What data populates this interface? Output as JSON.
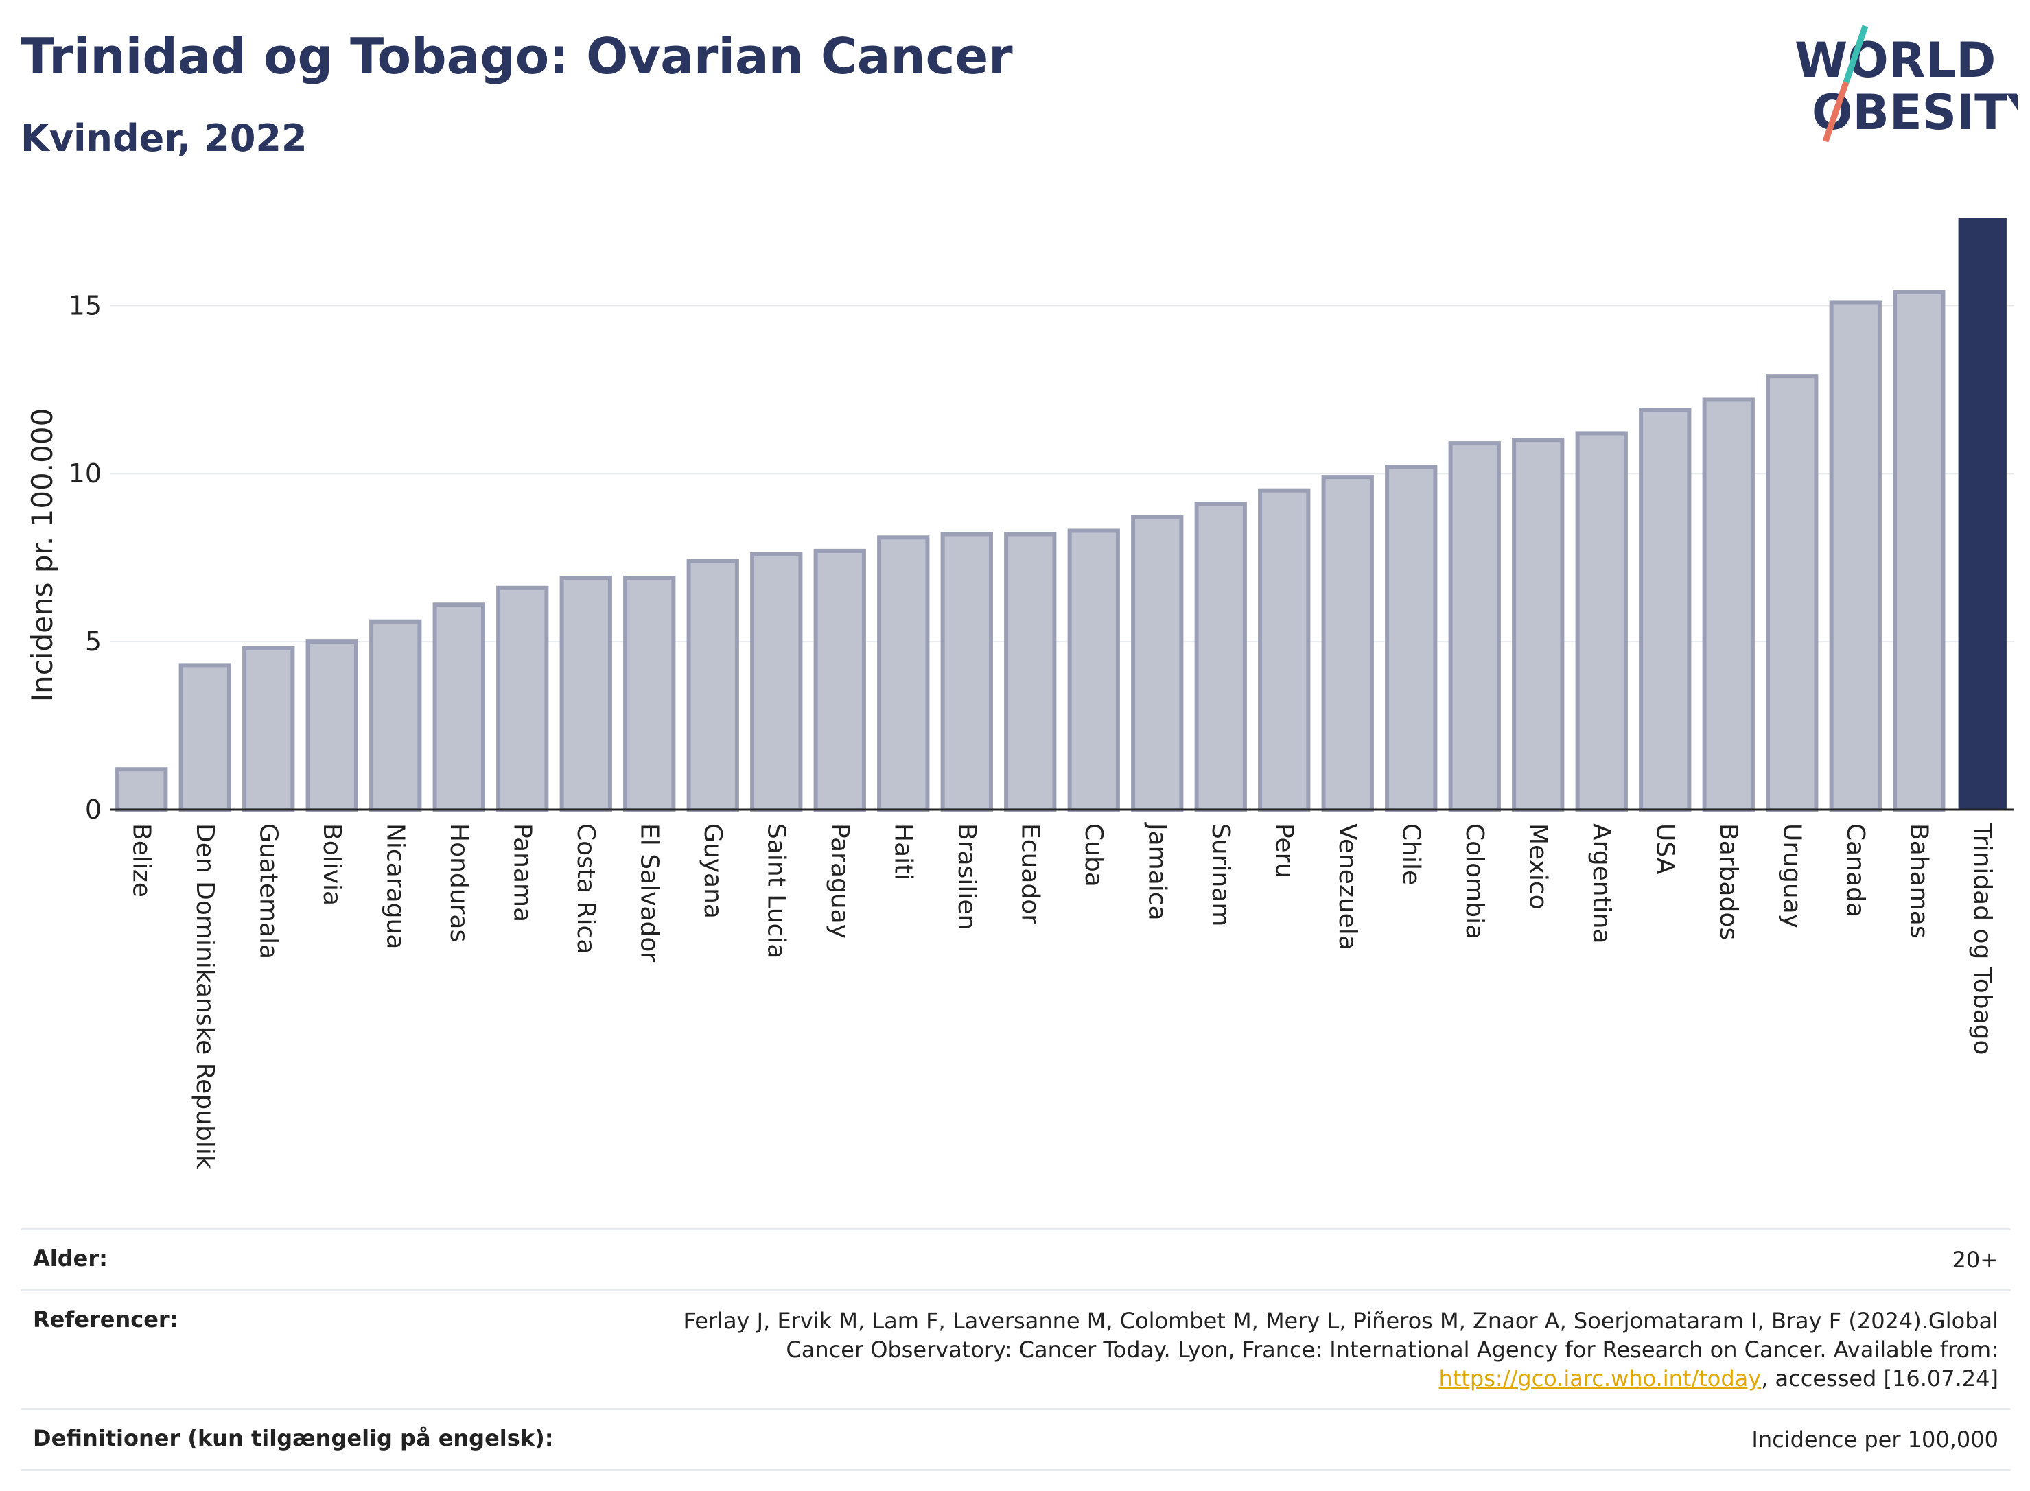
{
  "header": {
    "title": "Trinidad og Tobago: Ovarian Cancer",
    "subtitle": "Kvinder, 2022",
    "logo_line1": "WORLD",
    "logo_line2": "OBESITY"
  },
  "colors": {
    "bar": "#bfc3d0",
    "bar_stroke": "#9a9fb6",
    "highlight": "#2a3560",
    "grid": "#e6e9ee",
    "logo_teal": "#3bbfb3",
    "logo_coral": "#e8735f",
    "link": "#e0a800"
  },
  "chart_data": {
    "type": "bar",
    "ylabel": "Incidens pr. 100.000",
    "ylim": [
      0,
      17.6
    ],
    "yticks": [
      0,
      5,
      10,
      15
    ],
    "grid": true,
    "highlight": "Trinidad og Tobago",
    "categories": [
      "Belize",
      "Den Dominikanske Republik",
      "Guatemala",
      "Bolivia",
      "Nicaragua",
      "Honduras",
      "Panama",
      "Costa Rica",
      "El Salvador",
      "Guyana",
      "Saint Lucia",
      "Paraguay",
      "Haiti",
      "Brasilien",
      "Ecuador",
      "Cuba",
      "Jamaica",
      "Surinam",
      "Peru",
      "Venezuela",
      "Chile",
      "Colombia",
      "Mexico",
      "Argentina",
      "USA",
      "Barbados",
      "Uruguay",
      "Canada",
      "Bahamas",
      "Trinidad og Tobago"
    ],
    "values": [
      1.2,
      4.3,
      4.8,
      5.0,
      5.6,
      6.1,
      6.6,
      6.9,
      6.9,
      7.4,
      7.6,
      7.7,
      8.1,
      8.2,
      8.2,
      8.3,
      8.7,
      9.1,
      9.5,
      9.9,
      10.2,
      10.9,
      11.0,
      11.2,
      11.9,
      12.2,
      12.9,
      15.1,
      15.4,
      17.6
    ]
  },
  "footer": {
    "age_label": "Alder:",
    "age_value": "20+",
    "ref_label": "Referencer:",
    "ref_text": "Ferlay J, Ervik M, Lam F, Laversanne M, Colombet M, Mery L, Piñeros M, Znaor A, Soerjomataram I, Bray F (2024).Global Cancer Observatory: Cancer Today. Lyon, France: International Agency for Research on Cancer. Available from: ",
    "ref_link": "https://gco.iarc.who.int/today",
    "ref_tail": ", accessed [16.07.24]",
    "def_label": "Definitioner (kun tilgængelig på engelsk):",
    "def_value": "Incidence per 100,000"
  }
}
